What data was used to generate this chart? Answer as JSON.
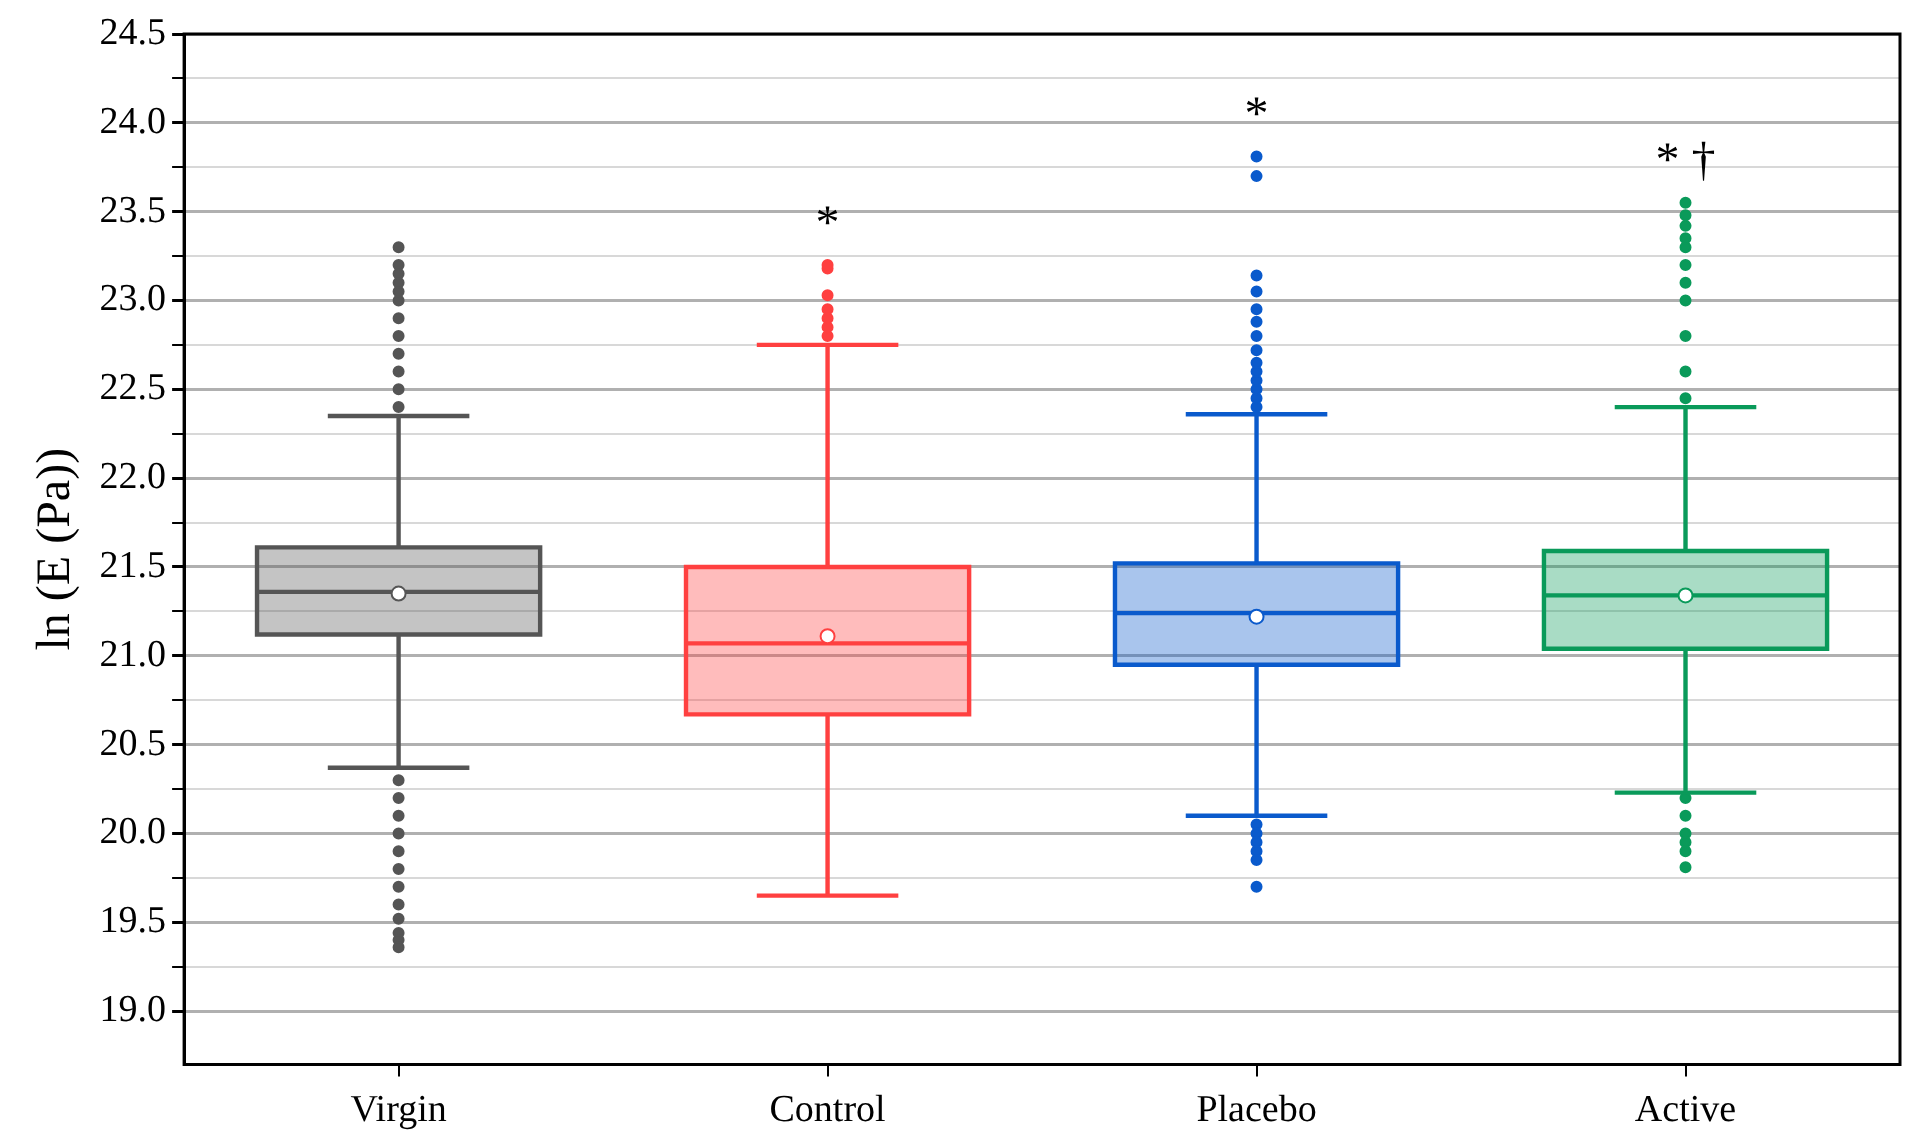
{
  "chart_data": {
    "type": "box",
    "ylabel": "ln (E (Pa))",
    "categories": [
      "Virgin",
      "Control",
      "Placebo",
      "Active"
    ],
    "colors": [
      "#555555",
      "#ff4040",
      "#0a5acc",
      "#0a9a5a"
    ],
    "boxes": [
      {
        "low": 20.37,
        "q1": 21.12,
        "median": 21.36,
        "q3": 21.61,
        "high": 22.35,
        "mean": 21.35,
        "outliers": [
          22.4,
          22.5,
          22.6,
          22.7,
          22.8,
          22.9,
          23.0,
          23.05,
          23.1,
          23.15,
          23.2,
          23.3,
          20.3,
          20.2,
          20.1,
          20.0,
          19.9,
          19.8,
          19.7,
          19.6,
          19.52,
          19.44,
          19.4,
          19.36
        ]
      },
      {
        "low": 19.65,
        "q1": 20.67,
        "median": 21.07,
        "q3": 21.5,
        "high": 22.75,
        "mean": 21.11,
        "outliers": [
          22.8,
          22.85,
          22.9,
          22.95,
          23.03,
          23.18,
          23.2
        ]
      },
      {
        "low": 20.1,
        "q1": 20.95,
        "median": 21.24,
        "q3": 21.52,
        "high": 22.36,
        "mean": 21.22,
        "outliers": [
          22.4,
          22.45,
          22.5,
          22.55,
          22.6,
          22.65,
          22.72,
          22.8,
          22.88,
          22.95,
          23.05,
          23.14,
          23.7,
          23.81,
          20.05,
          20.0,
          19.95,
          19.9,
          19.85,
          19.7
        ]
      },
      {
        "low": 20.23,
        "q1": 21.04,
        "median": 21.34,
        "q3": 21.59,
        "high": 22.4,
        "mean": 21.34,
        "outliers": [
          22.45,
          22.6,
          22.8,
          23.0,
          23.1,
          23.2,
          23.3,
          23.35,
          23.42,
          23.48,
          23.55,
          20.2,
          20.1,
          20.0,
          19.95,
          19.9,
          19.81
        ]
      }
    ],
    "ylim": [
      18.7,
      24.5
    ],
    "yticks": [
      {
        "value": 19,
        "label": "19.0"
      },
      {
        "value": 19.25,
        "label": null
      },
      {
        "value": 19.5,
        "label": "19.5"
      },
      {
        "value": 19.75,
        "label": null
      },
      {
        "value": 20,
        "label": "20.0"
      },
      {
        "value": 20.25,
        "label": null
      },
      {
        "value": 20.5,
        "label": "20.5"
      },
      {
        "value": 20.75,
        "label": null
      },
      {
        "value": 21,
        "label": "21.0"
      },
      {
        "value": 21.25,
        "label": null
      },
      {
        "value": 21.5,
        "label": "21.5"
      },
      {
        "value": 21.75,
        "label": null
      },
      {
        "value": 22,
        "label": "22.0"
      },
      {
        "value": 22.25,
        "label": null
      },
      {
        "value": 22.5,
        "label": "22.5"
      },
      {
        "value": 22.75,
        "label": null
      },
      {
        "value": 23,
        "label": "23.0"
      },
      {
        "value": 23.25,
        "label": null
      },
      {
        "value": 23.5,
        "label": "23.5"
      },
      {
        "value": 23.75,
        "label": null
      },
      {
        "value": 24,
        "label": "24.0"
      },
      {
        "value": 24.25,
        "label": null
      },
      {
        "value": 24.5,
        "label": "24.5"
      }
    ],
    "grid": "y",
    "legend": false,
    "marker": "circle",
    "annotations": [
      "*",
      "*",
      "* †"
    ]
  }
}
